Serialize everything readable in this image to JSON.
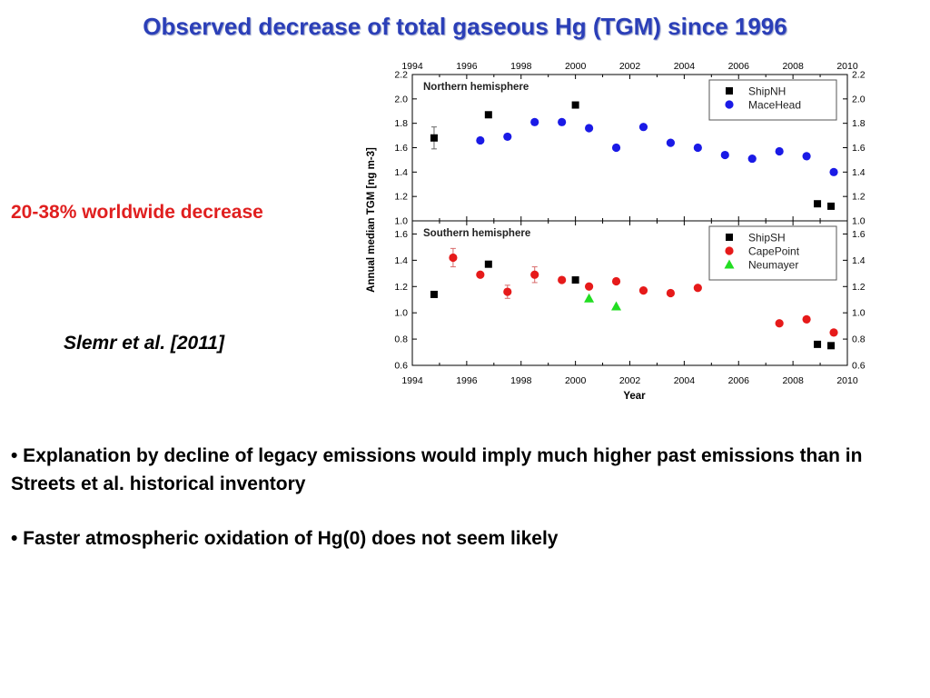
{
  "slide": {
    "title": "Observed decrease of total gaseous Hg (TGM) since 1996",
    "callout": "20-38% worldwide decrease",
    "citation": "Slemr et al. [2011]",
    "bullets": [
      "• Explanation by decline of legacy emissions would imply much higher past emissions than in Streets et al. historical inventory",
      "• Faster atmospheric oxidation of Hg(0) does not seem likely"
    ]
  },
  "chart_data": {
    "type": "scatter",
    "xlabel": "Year",
    "ylabel": "Annual median TGM [ng m-3]",
    "xlim": [
      1994,
      2010
    ],
    "xticks": [
      1994,
      1996,
      1998,
      2000,
      2002,
      2004,
      2006,
      2008,
      2010
    ],
    "panels": [
      {
        "title": "Northern hemisphere",
        "ylim": [
          1.0,
          2.2
        ],
        "yticks": [
          1.0,
          1.2,
          1.4,
          1.6,
          1.8,
          2.0,
          2.2
        ],
        "legend_position": "top-right",
        "series": [
          {
            "name": "ShipNH",
            "marker": "square",
            "color": "#000000",
            "points": [
              {
                "x": 1994.8,
                "y": 1.68,
                "err": 0.09
              },
              {
                "x": 1996.8,
                "y": 1.87
              },
              {
                "x": 2000.0,
                "y": 1.95
              },
              {
                "x": 2008.9,
                "y": 1.14
              },
              {
                "x": 2009.4,
                "y": 1.12
              }
            ]
          },
          {
            "name": "MaceHead",
            "marker": "circle",
            "color": "#1a1ae6",
            "points": [
              {
                "x": 1996.5,
                "y": 1.66
              },
              {
                "x": 1997.5,
                "y": 1.69
              },
              {
                "x": 1998.5,
                "y": 1.81
              },
              {
                "x": 1999.5,
                "y": 1.81
              },
              {
                "x": 2000.5,
                "y": 1.76
              },
              {
                "x": 2001.5,
                "y": 1.6
              },
              {
                "x": 2002.5,
                "y": 1.77
              },
              {
                "x": 2003.5,
                "y": 1.64
              },
              {
                "x": 2004.5,
                "y": 1.6
              },
              {
                "x": 2005.5,
                "y": 1.54
              },
              {
                "x": 2006.5,
                "y": 1.51
              },
              {
                "x": 2007.5,
                "y": 1.57
              },
              {
                "x": 2008.5,
                "y": 1.53
              },
              {
                "x": 2009.5,
                "y": 1.4
              }
            ]
          }
        ]
      },
      {
        "title": "Southern hemisphere",
        "ylim": [
          0.6,
          1.7
        ],
        "yticks": [
          0.6,
          0.8,
          1.0,
          1.2,
          1.4,
          1.6
        ],
        "legend_position": "top-right",
        "series": [
          {
            "name": "ShipSH",
            "marker": "square",
            "color": "#000000",
            "points": [
              {
                "x": 1994.8,
                "y": 1.14
              },
              {
                "x": 1996.8,
                "y": 1.37
              },
              {
                "x": 2000.0,
                "y": 1.25
              },
              {
                "x": 2008.9,
                "y": 0.76
              },
              {
                "x": 2009.4,
                "y": 0.75
              }
            ]
          },
          {
            "name": "CapePoint",
            "marker": "circle",
            "color": "#e61a1a",
            "points": [
              {
                "x": 1995.5,
                "y": 1.42,
                "err": 0.07
              },
              {
                "x": 1996.5,
                "y": 1.29
              },
              {
                "x": 1997.5,
                "y": 1.16,
                "err": 0.05
              },
              {
                "x": 1998.5,
                "y": 1.29,
                "err": 0.06
              },
              {
                "x": 1999.5,
                "y": 1.25
              },
              {
                "x": 2000.5,
                "y": 1.2
              },
              {
                "x": 2001.5,
                "y": 1.24
              },
              {
                "x": 2002.5,
                "y": 1.17
              },
              {
                "x": 2003.5,
                "y": 1.15
              },
              {
                "x": 2004.5,
                "y": 1.19
              },
              {
                "x": 2007.5,
                "y": 0.92
              },
              {
                "x": 2008.5,
                "y": 0.95
              },
              {
                "x": 2009.5,
                "y": 0.85
              }
            ]
          },
          {
            "name": "Neumayer",
            "marker": "triangle",
            "color": "#22dd22",
            "points": [
              {
                "x": 2000.5,
                "y": 1.11
              },
              {
                "x": 2001.5,
                "y": 1.05
              }
            ]
          }
        ]
      }
    ]
  }
}
